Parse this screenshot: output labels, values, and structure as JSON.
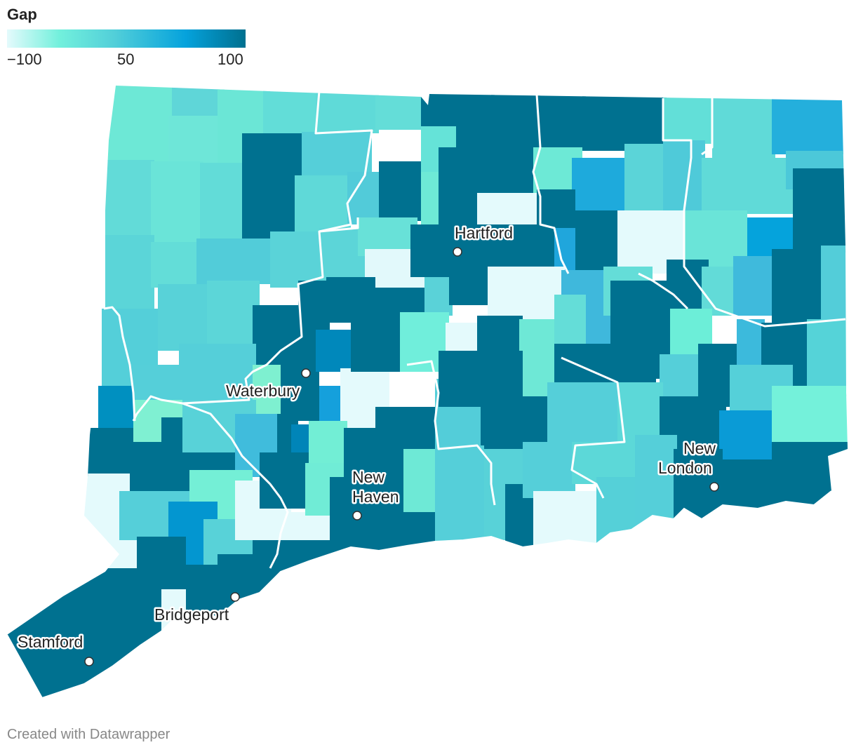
{
  "legend": {
    "title": "Gap",
    "ticks": [
      "−100",
      "50",
      "100"
    ],
    "colors": [
      "#e4fafc",
      "#72f0dc",
      "#52cfd9",
      "#05a2dc",
      "#00708f"
    ]
  },
  "cities": [
    {
      "name": "Hartford"
    },
    {
      "name": "Waterbury"
    },
    {
      "name": "New Haven"
    },
    {
      "name": "New London"
    },
    {
      "name": "Bridgeport"
    },
    {
      "name": "Stamford"
    }
  ],
  "footer": {
    "credit": "Created with Datawrapper"
  }
}
